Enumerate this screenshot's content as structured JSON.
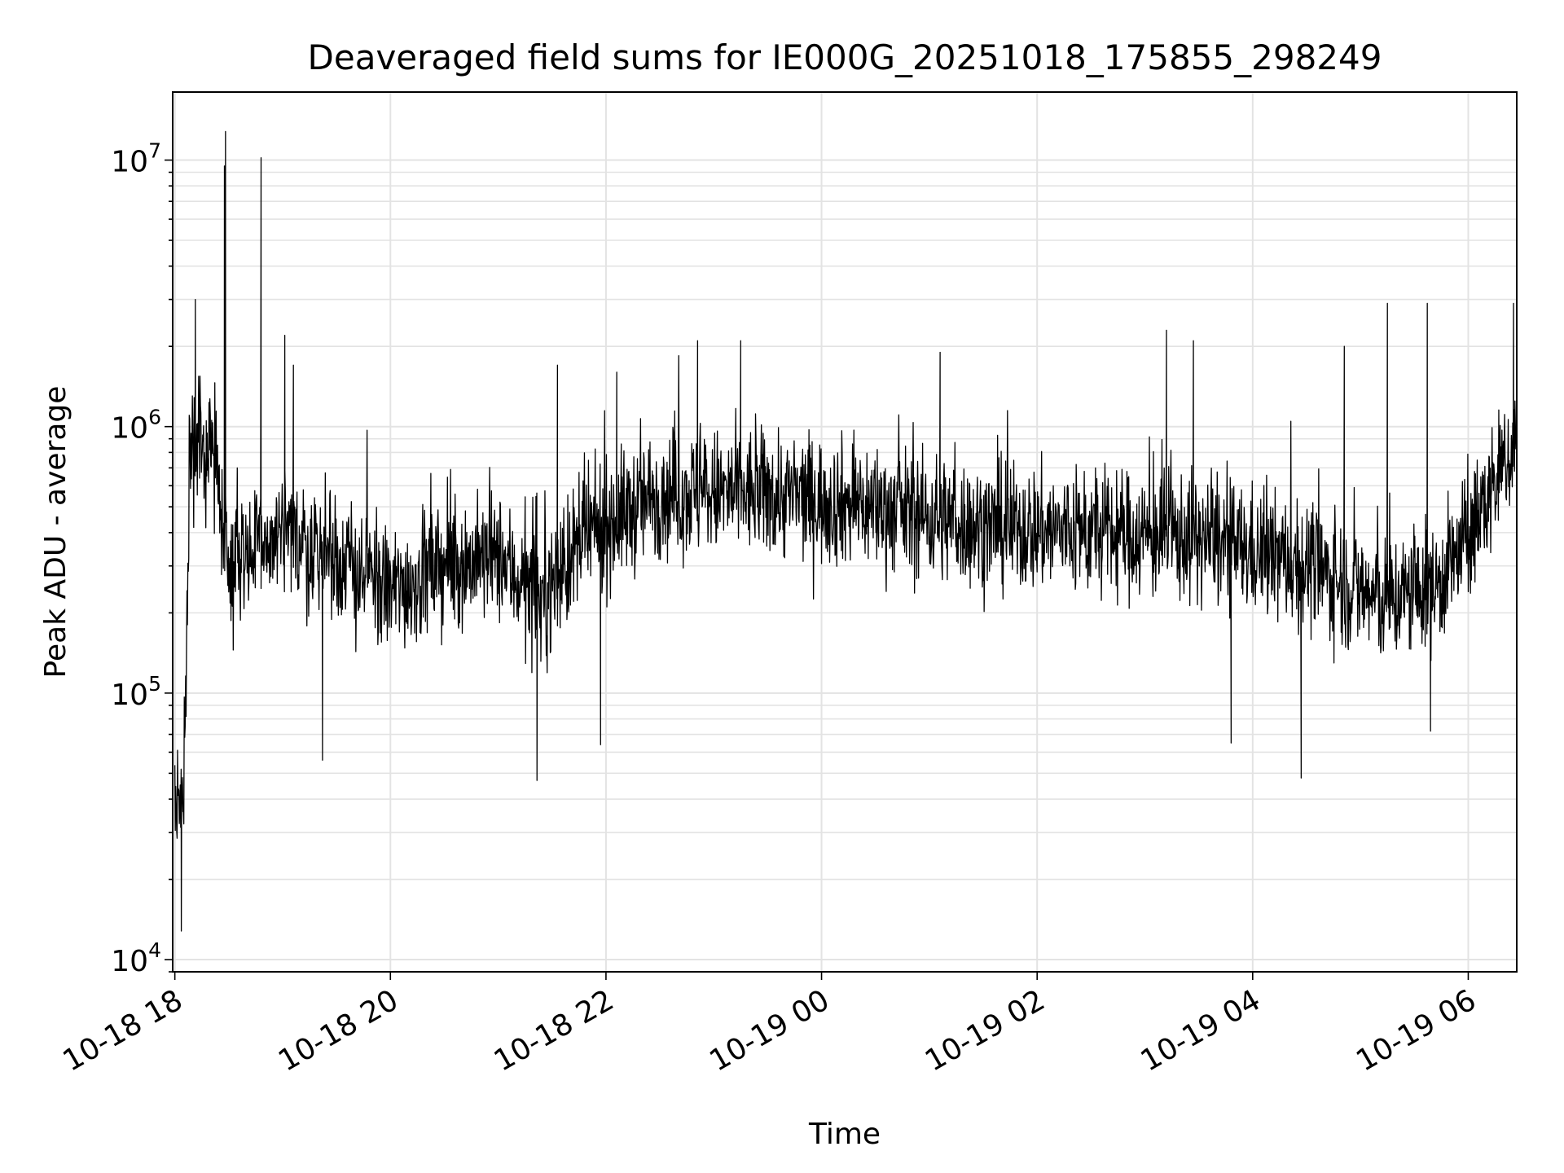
{
  "chart_data": {
    "type": "line",
    "title": "Deaveraged field sums for IE000G_20251018_175855_298249",
    "xlabel": "Time",
    "ylabel": "Peak ADU - average",
    "yscale": "log",
    "ylim": [
      9000,
      18000000
    ],
    "xlim_hours": [
      -0.02,
      12.45
    ],
    "grid": true,
    "x_ticks": [
      {
        "label": "10-18 18",
        "hours": 0
      },
      {
        "label": "10-18 20",
        "hours": 2
      },
      {
        "label": "10-18 22",
        "hours": 4
      },
      {
        "label": "10-19 00",
        "hours": 6
      },
      {
        "label": "10-19 02",
        "hours": 8
      },
      {
        "label": "10-19 04",
        "hours": 10
      },
      {
        "label": "10-19 06",
        "hours": 12
      }
    ],
    "y_ticks": [
      {
        "base": "10",
        "exp": "4",
        "value": 10000
      },
      {
        "base": "10",
        "exp": "5",
        "value": 100000
      },
      {
        "base": "10",
        "exp": "6",
        "value": 1000000
      },
      {
        "base": "10",
        "exp": "7",
        "value": 10000000
      }
    ],
    "series": [
      {
        "name": "Peak ADU - average",
        "color": "#000000",
        "samples_per_hour": 240,
        "baseline_envelope": [
          {
            "hours": 0.0,
            "median": 40000
          },
          {
            "hours": 0.08,
            "median": 40000
          },
          {
            "hours": 0.14,
            "median": 700000
          },
          {
            "hours": 0.35,
            "median": 900000
          },
          {
            "hours": 0.5,
            "median": 320000
          },
          {
            "hours": 1.0,
            "median": 380000
          },
          {
            "hours": 1.5,
            "median": 320000
          },
          {
            "hours": 2.0,
            "median": 240000
          },
          {
            "hours": 2.5,
            "median": 300000
          },
          {
            "hours": 3.0,
            "median": 320000
          },
          {
            "hours": 3.4,
            "median": 220000
          },
          {
            "hours": 3.8,
            "median": 380000
          },
          {
            "hours": 4.5,
            "median": 560000
          },
          {
            "hours": 5.5,
            "median": 560000
          },
          {
            "hours": 6.5,
            "median": 500000
          },
          {
            "hours": 7.5,
            "median": 420000
          },
          {
            "hours": 8.5,
            "median": 400000
          },
          {
            "hours": 9.5,
            "median": 380000
          },
          {
            "hours": 10.5,
            "median": 300000
          },
          {
            "hours": 11.2,
            "median": 220000
          },
          {
            "hours": 11.7,
            "median": 250000
          },
          {
            "hours": 12.0,
            "median": 380000
          },
          {
            "hours": 12.45,
            "median": 900000
          }
        ],
        "spikes": [
          {
            "hours": 0.47,
            "value": 12800000
          },
          {
            "hours": 0.46,
            "value": 9500000
          },
          {
            "hours": 0.8,
            "value": 10200000
          },
          {
            "hours": 0.19,
            "value": 3000000
          },
          {
            "hours": 1.02,
            "value": 2200000
          },
          {
            "hours": 1.1,
            "value": 1700000
          },
          {
            "hours": 3.55,
            "value": 1700000
          },
          {
            "hours": 4.1,
            "value": 1600000
          },
          {
            "hours": 4.85,
            "value": 2100000
          },
          {
            "hours": 5.25,
            "value": 2100000
          },
          {
            "hours": 7.1,
            "value": 1900000
          },
          {
            "hours": 9.2,
            "value": 2300000
          },
          {
            "hours": 9.45,
            "value": 2100000
          },
          {
            "hours": 10.85,
            "value": 2000000
          },
          {
            "hours": 11.25,
            "value": 2900000
          },
          {
            "hours": 11.62,
            "value": 2900000
          },
          {
            "hours": 12.42,
            "value": 2900000
          },
          {
            "hours": 0.06,
            "value": 12800
          },
          {
            "hours": 1.37,
            "value": 56000
          },
          {
            "hours": 3.36,
            "value": 47000
          },
          {
            "hours": 3.95,
            "value": 64000
          },
          {
            "hours": 9.8,
            "value": 65000
          },
          {
            "hours": 10.45,
            "value": 48000
          },
          {
            "hours": 11.65,
            "value": 72000
          }
        ]
      }
    ]
  }
}
